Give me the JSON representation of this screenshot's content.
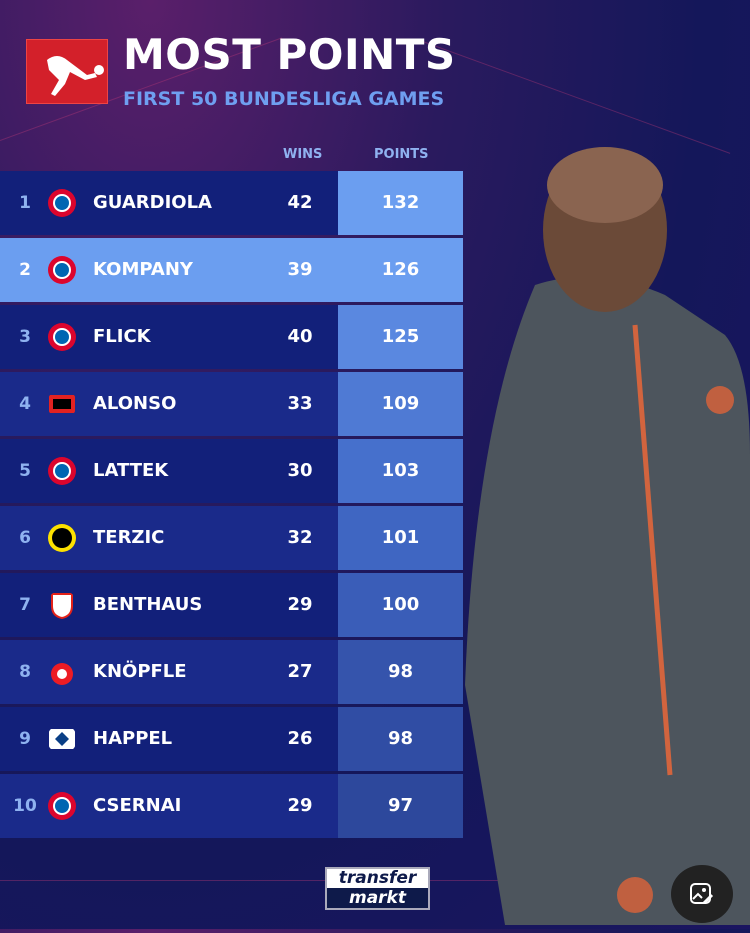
{
  "header": {
    "title": "MOST POINTS",
    "subtitle": "FIRST 50 BUNDESLIGA GAMES",
    "logo": "bundesliga-logo"
  },
  "columns": {
    "wins": "WINS",
    "points": "POINTS"
  },
  "colors": {
    "accent_title": "#6f9ff0",
    "highlight_row": "#6b9ef0",
    "logo_red": "#d3202a"
  },
  "rows": [
    {
      "rank": "1",
      "name": "GUARDIOLA",
      "wins": "42",
      "points": "132",
      "club": "bayern"
    },
    {
      "rank": "2",
      "name": "KOMPANY",
      "wins": "39",
      "points": "126",
      "club": "bayern",
      "highlighted": true
    },
    {
      "rank": "3",
      "name": "FLICK",
      "wins": "40",
      "points": "125",
      "club": "bayern"
    },
    {
      "rank": "4",
      "name": "ALONSO",
      "wins": "33",
      "points": "109",
      "club": "leverkusen"
    },
    {
      "rank": "5",
      "name": "LATTEK",
      "wins": "30",
      "points": "103",
      "club": "bayern"
    },
    {
      "rank": "6",
      "name": "TERZIC",
      "wins": "32",
      "points": "101",
      "club": "dortmund"
    },
    {
      "rank": "7",
      "name": "BENTHAUS",
      "wins": "29",
      "points": "100",
      "club": "stuttgart"
    },
    {
      "rank": "8",
      "name": "KNÖPFLE",
      "wins": "27",
      "points": "98",
      "club": "koeln"
    },
    {
      "rank": "9",
      "name": "HAPPEL",
      "wins": "26",
      "points": "98",
      "club": "hamburg"
    },
    {
      "rank": "10",
      "name": "CSERNAI",
      "wins": "29",
      "points": "97",
      "club": "bayern"
    }
  ],
  "footer": {
    "brand_line1": "transfer",
    "brand_line2": "markt"
  }
}
